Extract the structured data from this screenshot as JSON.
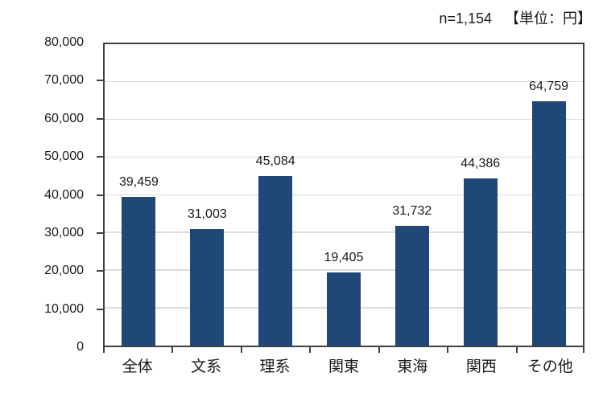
{
  "annotation": {
    "sample_size": "n=1,154",
    "unit_note": "【単位：円】"
  },
  "chart_data": {
    "type": "bar",
    "title": "",
    "categories": [
      "全体",
      "文系",
      "理系",
      "関東",
      "東海",
      "関西",
      "その他"
    ],
    "values": [
      39459,
      31003,
      45084,
      19405,
      31732,
      44386,
      64759
    ],
    "value_labels": [
      "39,459",
      "31,003",
      "45,084",
      "19,405",
      "31,732",
      "44,386",
      "64,759"
    ],
    "y_ticks": [
      "0",
      "10,000",
      "20,000",
      "30,000",
      "40,000",
      "50,000",
      "60,000",
      "70,000",
      "80,000"
    ],
    "ylim": [
      0,
      80000
    ],
    "y_step": 10000,
    "xlabel": "",
    "ylabel": "",
    "grid": true,
    "legend_position": "none",
    "annotation_text": "n=1,154 【単位：円】",
    "colors": {
      "bar": "#1F4878",
      "gridline": "#DCDCDC",
      "plot_border": "#404040",
      "text": "#1A1A1A",
      "background": "#FFFFFF"
    }
  }
}
